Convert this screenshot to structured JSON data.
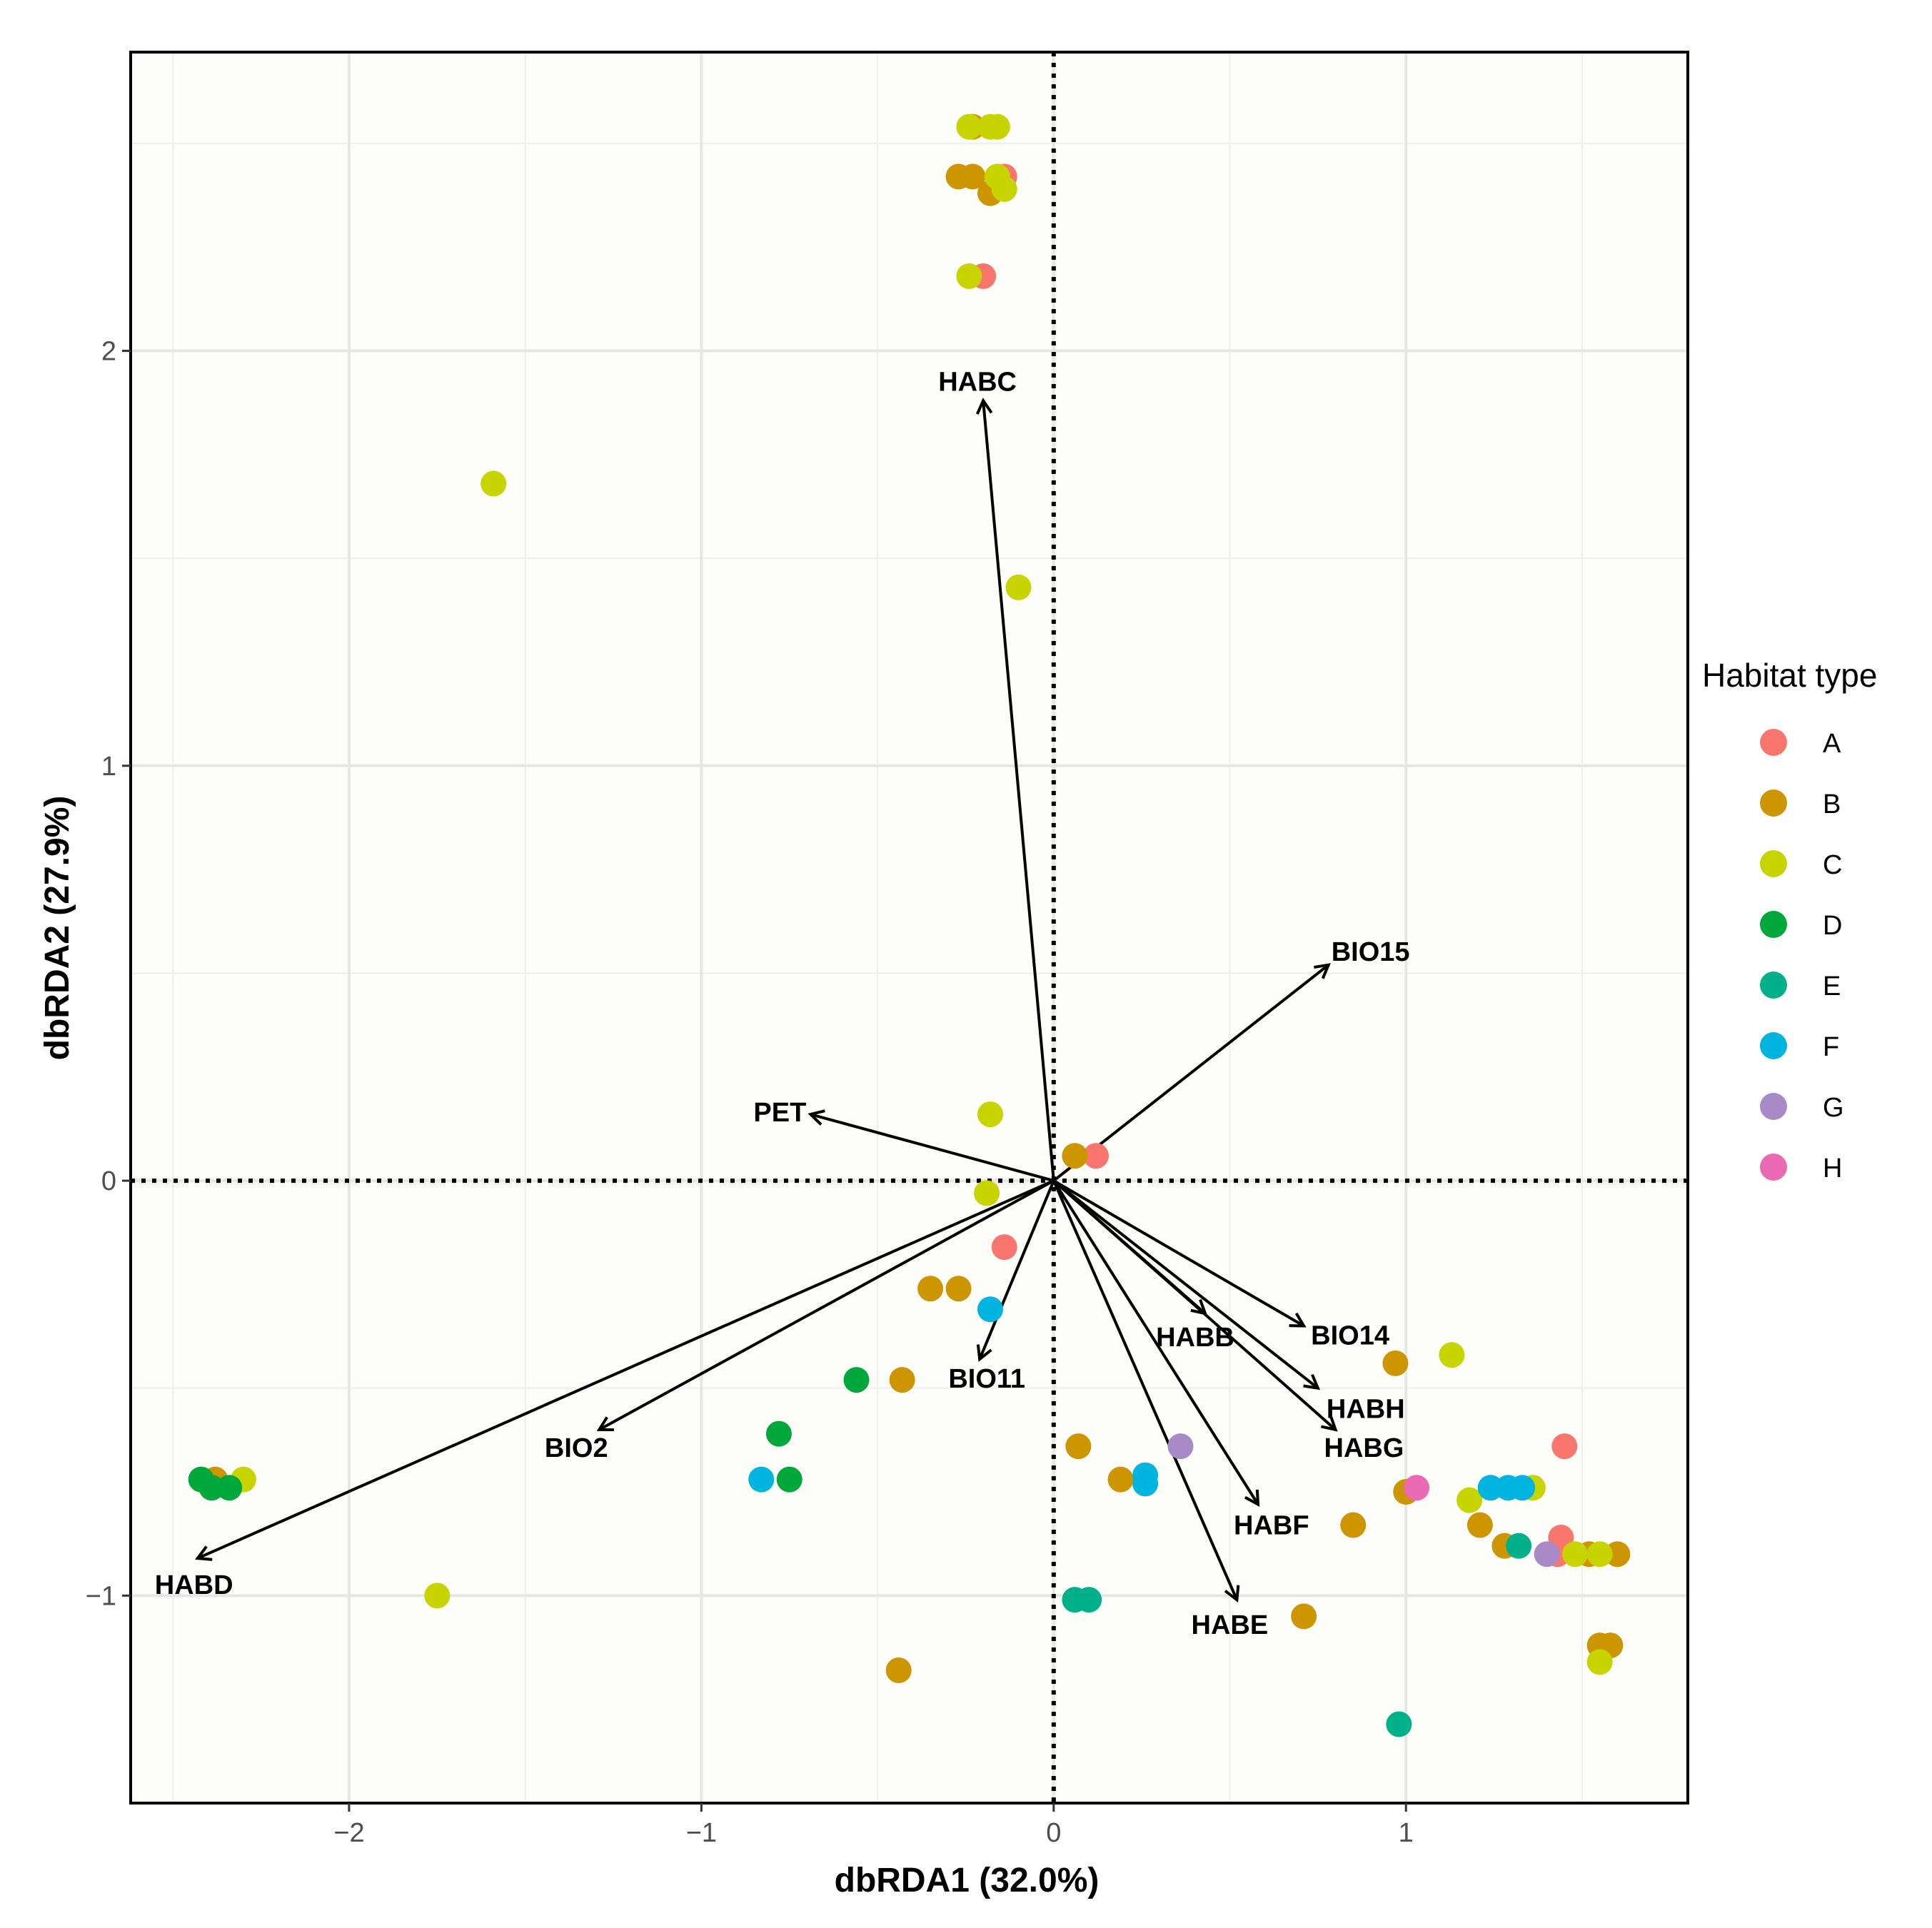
{
  "chart_data": {
    "type": "scatter",
    "title": "",
    "xlabel": "dbRDA1 (32.0%)",
    "ylabel": "dbRDA2 (27.9%)",
    "xlim": [
      -2.62,
      1.8
    ],
    "ylim": [
      -1.5,
      2.72
    ],
    "x_ticks": [
      -2,
      -1,
      0,
      1
    ],
    "y_ticks": [
      -1,
      0,
      1,
      2
    ],
    "x_tick_labels": [
      "−2",
      "−1",
      "0",
      "1"
    ],
    "y_tick_labels": [
      "−1",
      "0",
      "1",
      "2"
    ],
    "grid": true,
    "reference_lines": "dotted lines at x = 0 and y = 0",
    "legend": {
      "title": "Habitat type",
      "position": "right",
      "entries": [
        {
          "label": "A",
          "color": "#F8766D"
        },
        {
          "label": "B",
          "color": "#CD9600"
        },
        {
          "label": "C",
          "color": "#C8D400"
        },
        {
          "label": "D",
          "color": "#00A73A"
        },
        {
          "label": "E",
          "color": "#00B08A"
        },
        {
          "label": "F",
          "color": "#00B4E0"
        },
        {
          "label": "G",
          "color": "#A88BC6"
        },
        {
          "label": "H",
          "color": "#EC69B4"
        }
      ]
    },
    "series": [
      {
        "name": "A",
        "color": "#F8766D",
        "points": [
          [
            -0.14,
            2.42
          ],
          [
            -0.2,
            2.18
          ],
          [
            0.12,
            0.06
          ],
          [
            -0.14,
            -0.16
          ],
          [
            1.45,
            -0.64
          ],
          [
            1.44,
            -0.86
          ],
          [
            1.43,
            -0.9
          ]
        ]
      },
      {
        "name": "B",
        "color": "#CD9600",
        "points": [
          [
            -0.23,
            2.54
          ],
          [
            -0.27,
            2.42
          ],
          [
            -0.23,
            2.42
          ],
          [
            -0.18,
            2.38
          ],
          [
            0.06,
            0.06
          ],
          [
            -0.35,
            -0.26
          ],
          [
            -0.27,
            -0.26
          ],
          [
            -0.43,
            -0.48
          ],
          [
            0.07,
            -0.64
          ],
          [
            0.19,
            -0.72
          ],
          [
            0.97,
            -0.44
          ],
          [
            1.0,
            -0.75
          ],
          [
            0.85,
            -0.83
          ],
          [
            1.21,
            -0.83
          ],
          [
            1.28,
            -0.88
          ],
          [
            1.52,
            -0.9
          ],
          [
            1.6,
            -0.9
          ],
          [
            1.55,
            -1.12
          ],
          [
            1.58,
            -1.12
          ],
          [
            0.71,
            -1.05
          ],
          [
            -0.44,
            -1.18
          ],
          [
            -2.38,
            -0.72
          ]
        ]
      },
      {
        "name": "C",
        "color": "#C8D400",
        "points": [
          [
            -0.24,
            2.54
          ],
          [
            -0.18,
            2.54
          ],
          [
            -0.16,
            2.54
          ],
          [
            -0.16,
            2.42
          ],
          [
            -0.14,
            2.39
          ],
          [
            -0.24,
            2.18
          ],
          [
            -1.59,
            1.68
          ],
          [
            -0.1,
            1.43
          ],
          [
            -0.18,
            0.16
          ],
          [
            -0.19,
            -0.03
          ],
          [
            1.13,
            -0.42
          ],
          [
            1.18,
            -0.77
          ],
          [
            1.36,
            -0.74
          ],
          [
            1.48,
            -0.9
          ],
          [
            1.55,
            -0.9
          ],
          [
            1.55,
            -1.16
          ],
          [
            -1.75,
            -1.0
          ],
          [
            -2.3,
            -0.72
          ]
        ]
      },
      {
        "name": "D",
        "color": "#00A73A",
        "points": [
          [
            -0.56,
            -0.48
          ],
          [
            -0.78,
            -0.61
          ],
          [
            -0.75,
            -0.72
          ],
          [
            -2.42,
            -0.72
          ],
          [
            -2.39,
            -0.74
          ],
          [
            -2.34,
            -0.74
          ]
        ]
      },
      {
        "name": "E",
        "color": "#00B08A",
        "points": [
          [
            0.06,
            -1.01
          ],
          [
            0.1,
            -1.01
          ],
          [
            0.98,
            -1.31
          ],
          [
            1.32,
            -0.88
          ]
        ]
      },
      {
        "name": "F",
        "color": "#00B4E0",
        "points": [
          [
            -0.18,
            -0.31
          ],
          [
            -0.83,
            -0.72
          ],
          [
            0.26,
            -0.71
          ],
          [
            0.26,
            -0.73
          ],
          [
            1.24,
            -0.74
          ],
          [
            1.29,
            -0.74
          ],
          [
            1.33,
            -0.74
          ]
        ]
      },
      {
        "name": "G",
        "color": "#A88BC6",
        "points": [
          [
            0.36,
            -0.64
          ],
          [
            1.4,
            -0.9
          ]
        ]
      },
      {
        "name": "H",
        "color": "#EC69B4",
        "points": [
          [
            1.03,
            -0.74
          ]
        ]
      }
    ],
    "vectors": [
      {
        "label": "HABC",
        "x": -0.2,
        "y": 1.88
      },
      {
        "label": "BIO15",
        "x": 0.78,
        "y": 0.52
      },
      {
        "label": "PET",
        "x": -0.69,
        "y": 0.16
      },
      {
        "label": "BIO14",
        "x": 0.71,
        "y": -0.35
      },
      {
        "label": "HABB",
        "x": 0.43,
        "y": -0.32
      },
      {
        "label": "HABH",
        "x": 0.75,
        "y": -0.5
      },
      {
        "label": "HABG",
        "x": 0.8,
        "y": -0.6
      },
      {
        "label": "HABF",
        "x": 0.58,
        "y": -0.78
      },
      {
        "label": "HABE",
        "x": 0.52,
        "y": -1.01
      },
      {
        "label": "BIO11",
        "x": -0.21,
        "y": -0.43
      },
      {
        "label": "BIO2",
        "x": -1.29,
        "y": -0.6
      },
      {
        "label": "HABD",
        "x": -2.43,
        "y": -0.91
      }
    ]
  }
}
